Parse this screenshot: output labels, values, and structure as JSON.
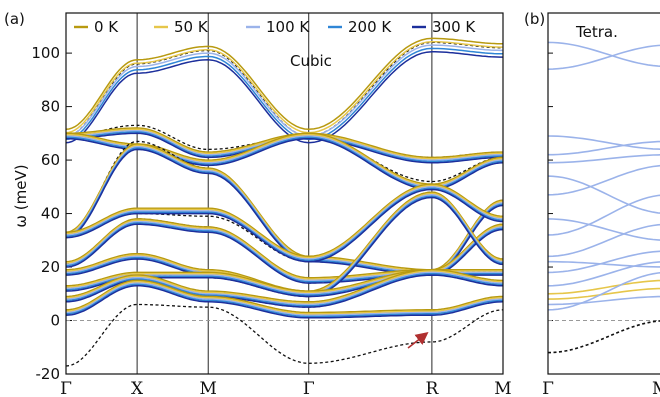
{
  "chart_data": [
    {
      "panel_label": "(a)",
      "type": "line",
      "annotation": "Cubic",
      "ylabel": "ω (meV)",
      "ylim": [
        -20,
        115
      ],
      "yticks": [
        -20,
        0,
        20,
        40,
        60,
        80,
        100
      ],
      "x_path_labels": [
        "Γ",
        "X",
        "M",
        "Γ",
        "R",
        "M"
      ],
      "x_path_positions": [
        0,
        1,
        2,
        3.414,
        5.146,
        6.146
      ],
      "grid": false,
      "reference_line": {
        "y": 0,
        "style": "dashed gray"
      },
      "legend": {
        "placement": "top",
        "entries": [
          {
            "label": "0 K",
            "color": "#b89a10"
          },
          {
            "label": "50 K",
            "color": "#e6c64a"
          },
          {
            "label": "100 K",
            "color": "#9bb3ea"
          },
          {
            "label": "200 K",
            "color": "#2f86d6"
          },
          {
            "label": "300 K",
            "color": "#1c2f9c"
          }
        ]
      },
      "reference_series": {
        "style": "dashed black"
      },
      "branches": [
        {
          "x": [
            0,
            1,
            2,
            3.414,
            5.146,
            6.146
          ],
          "y": [
            69,
            95,
            100,
            69,
            103,
            101
          ],
          "ref_y": [
            69,
            96,
            101,
            69,
            104,
            102
          ],
          "tail": 5
        },
        {
          "x": [
            0,
            1,
            2,
            3.414,
            5.146,
            6.146
          ],
          "y": [
            69,
            71,
            62,
            69,
            60,
            62
          ],
          "ref_y": [
            69,
            73,
            64,
            69,
            61,
            63
          ],
          "tail": 2
        },
        {
          "x": [
            0,
            1,
            2,
            3.414,
            5.146,
            6.146
          ],
          "y": [
            69,
            65,
            59,
            69,
            50,
            60
          ],
          "ref_y": [
            69,
            65,
            58,
            69,
            52,
            61
          ],
          "tail": 2
        },
        {
          "x": [
            0,
            1,
            2,
            3.414,
            5.146,
            6.146
          ],
          "y": [
            32,
            65,
            56,
            23,
            18,
            44
          ],
          "ref_y": [
            32,
            67,
            57,
            22,
            18,
            45
          ],
          "tail": 2
        },
        {
          "x": [
            0,
            1,
            2,
            3.414,
            5.146,
            6.146
          ],
          "y": [
            32,
            41,
            41,
            23,
            50,
            38
          ],
          "ref_y": [
            32,
            40,
            39,
            22,
            50,
            38
          ],
          "tail": 2
        },
        {
          "x": [
            0,
            1,
            2,
            3.414,
            5.146,
            6.146
          ],
          "y": [
            21,
            37,
            34,
            15,
            18,
            35
          ],
          "ref_y": [
            21,
            38,
            35,
            14,
            18,
            36
          ],
          "tail": 2
        },
        {
          "x": [
            0,
            1,
            2,
            3.414,
            5.146,
            6.146
          ],
          "y": [
            18,
            24,
            18,
            10,
            47,
            22
          ],
          "ref_y": [
            18,
            24,
            17,
            9,
            48,
            21
          ],
          "tail": 2
        },
        {
          "x": [
            0,
            1,
            2,
            3.414,
            5.146,
            6.146
          ],
          "y": [
            12,
            17,
            17,
            10,
            18,
            18
          ],
          "ref_y": [
            12,
            17,
            16,
            9,
            18,
            18
          ],
          "tail": 2
        },
        {
          "x": [
            0,
            1,
            2,
            3.414,
            5.146,
            6.146
          ],
          "y": [
            8,
            16,
            10,
            6,
            18,
            14
          ],
          "ref_y": [
            8,
            15,
            9,
            5,
            18,
            13
          ],
          "tail": 2
        },
        {
          "x": [
            0,
            1,
            2,
            3.414,
            5.146,
            6.146
          ],
          "y": [
            3,
            14,
            8,
            2,
            3,
            8
          ],
          "ref_y": [
            -17,
            6,
            5,
            -16,
            -8,
            4
          ],
          "tail": 2
        }
      ]
    },
    {
      "panel_label": "(b)",
      "type": "line",
      "annotation": "Tetra.",
      "ylim": [
        -20,
        115
      ],
      "x_path_labels": [
        "Γ",
        "M"
      ],
      "grid": false,
      "reference_line": {
        "y": 0,
        "style": "dashed gray"
      },
      "branches": [
        {
          "y_start": 94,
          "y_end": 103,
          "color": "#9bb3ea"
        },
        {
          "y_start": 104,
          "y_end": 95,
          "color": "#9bb3ea"
        },
        {
          "y_start": 69,
          "y_end": 64,
          "color": "#9bb3ea"
        },
        {
          "y_start": 62,
          "y_end": 67,
          "color": "#9bb3ea"
        },
        {
          "y_start": 59,
          "y_end": 62,
          "color": "#9bb3ea"
        },
        {
          "y_start": 54,
          "y_end": 40,
          "color": "#9bb3ea"
        },
        {
          "y_start": 47,
          "y_end": 58,
          "color": "#9bb3ea"
        },
        {
          "y_start": 38,
          "y_end": 30,
          "color": "#9bb3ea"
        },
        {
          "y_start": 32,
          "y_end": 47,
          "color": "#9bb3ea"
        },
        {
          "y_start": 24,
          "y_end": 36,
          "color": "#9bb3ea"
        },
        {
          "y_start": 22,
          "y_end": 20,
          "color": "#9bb3ea"
        },
        {
          "y_start": 18,
          "y_end": 26,
          "color": "#9bb3ea"
        },
        {
          "y_start": 13,
          "y_end": 22,
          "color": "#9bb3ea"
        },
        {
          "y_start": 10,
          "y_end": 15,
          "color": "#e6c64a"
        },
        {
          "y_start": 8,
          "y_end": 12,
          "color": "#e6c64a"
        },
        {
          "y_start": 6,
          "y_end": 9,
          "color": "#9bb3ea"
        },
        {
          "y_start": 4,
          "y_end": 18,
          "color": "#9bb3ea"
        },
        {
          "y_start": -12,
          "y_end": 0,
          "color": "#111111",
          "dashed": true
        }
      ]
    }
  ]
}
